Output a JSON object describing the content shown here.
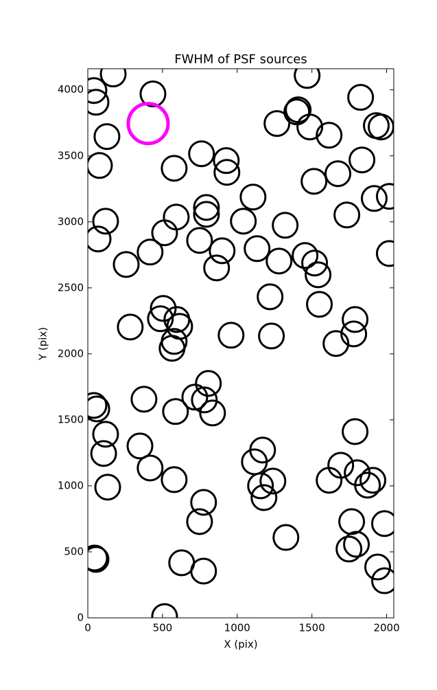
{
  "chart_data": {
    "type": "scatter",
    "title": "FWHM of PSF sources",
    "xlabel": "X (pix)",
    "ylabel": "Y (pix)",
    "xlim": [
      0,
      2048
    ],
    "ylim": [
      0,
      4160
    ],
    "xticks": [
      0,
      500,
      1000,
      1500,
      2000
    ],
    "yticks": [
      0,
      500,
      1000,
      1500,
      2000,
      2500,
      3000,
      3500,
      4000
    ],
    "series": [
      {
        "color": "#000000",
        "x": [
          41,
          55,
          170,
          436,
          128,
          78,
          578,
          761,
          927,
          931,
          794,
          794,
          592,
          119,
          69,
          514,
          417,
          257,
          748,
          899,
          862,
          1041,
          1106,
          1133,
          1321,
          1280,
          1220,
          1229,
          959,
          505,
          486,
          596,
          615,
          578,
          564,
          284,
          807,
          780,
          716,
          835,
          587,
          376,
          41,
          60,
          119,
          106,
          133,
          349,
          417,
          578,
          775,
          748,
          628,
          775,
          514,
          46,
          55,
          1115,
          1170,
          1156,
          1179,
          1239,
          1326,
          1615,
          1693,
          1789,
          1803,
          1872,
          1908,
          1766,
          1748,
          1798,
          1940,
          1986,
          1986,
          1661,
          1780,
          1789,
          1550,
          1541,
          1518,
          1454,
          2018,
          1734,
          1917,
          2018,
          1674,
          1514,
          1835,
          1615,
          1486,
          1399,
          1408,
          1266,
          1468,
          1826,
          1931,
          1963
        ],
        "y": [
          3995,
          3906,
          4120,
          3969,
          3646,
          3427,
          3406,
          3516,
          3464,
          3375,
          3109,
          3057,
          3036,
          3005,
          2870,
          2917,
          2771,
          2677,
          2859,
          2781,
          2651,
          3005,
          3188,
          2797,
          2974,
          2703,
          2432,
          2135,
          2141,
          2344,
          2266,
          2260,
          2208,
          2094,
          2042,
          2203,
          1776,
          1651,
          1672,
          1552,
          1563,
          1656,
          1609,
          1583,
          1391,
          1245,
          990,
          1302,
          1135,
          1047,
          875,
          729,
          417,
          354,
          10,
          453,
          443,
          1182,
          1271,
          1000,
          911,
          1036,
          609,
          1042,
          1156,
          1411,
          1099,
          1005,
          1042,
          729,
          521,
          557,
          385,
          281,
          714,
          2078,
          2151,
          2260,
          2375,
          2599,
          2688,
          2745,
          2760,
          3052,
          3177,
          3193,
          3365,
          3307,
          3469,
          3656,
          3719,
          3833,
          3849,
          3745,
          4109,
          3943,
          3729,
          3719
        ]
      },
      {
        "color": "#ff00ff",
        "x": [
          404
        ],
        "y": [
          3745
        ]
      }
    ]
  }
}
